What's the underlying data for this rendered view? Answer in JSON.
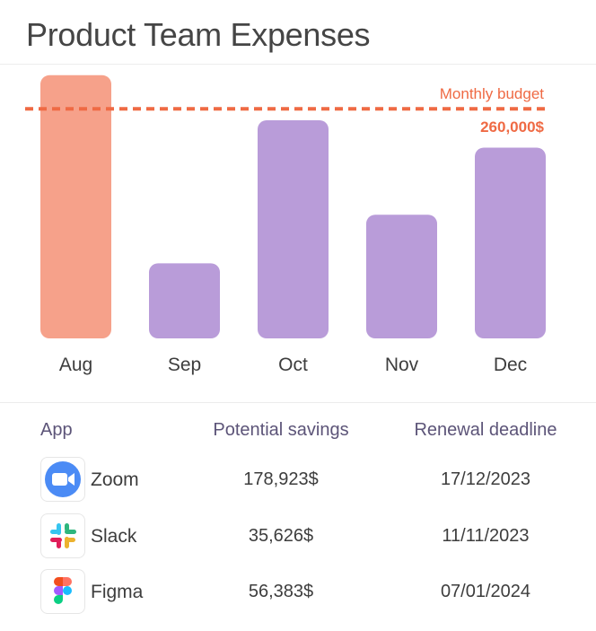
{
  "title": "Product Team Expenses",
  "chart_data": {
    "type": "bar",
    "categories": [
      "Aug",
      "Sep",
      "Oct",
      "Nov",
      "Dec"
    ],
    "values": [
      298000,
      85000,
      247000,
      140000,
      216000
    ],
    "ylim": [
      0,
      310000
    ],
    "reference_line": {
      "label": "Monthly budget",
      "value": 260000,
      "value_label": "260,000$",
      "color": "#ef6a44"
    },
    "bar_colors": [
      "#f6a18a",
      "#b99cd9",
      "#b99cd9",
      "#b99cd9",
      "#b99cd9"
    ],
    "highlight_color": "#f6a18a",
    "bar_color": "#b99cd9",
    "grid": false,
    "legend": "none"
  },
  "table": {
    "headers": {
      "app": "App",
      "savings": "Potential savings",
      "deadline": "Renewal deadline"
    },
    "rows": [
      {
        "app": "Zoom",
        "icon": "zoom-icon",
        "savings": "178,923$",
        "deadline": "17/12/2023"
      },
      {
        "app": "Slack",
        "icon": "slack-icon",
        "savings": "35,626$",
        "deadline": "11/11/2023"
      },
      {
        "app": "Figma",
        "icon": "figma-icon",
        "savings": "56,383$",
        "deadline": "07/01/2024"
      }
    ]
  },
  "colors": {
    "header_text": "#5c5478",
    "budget_line": "#ef6a44"
  }
}
